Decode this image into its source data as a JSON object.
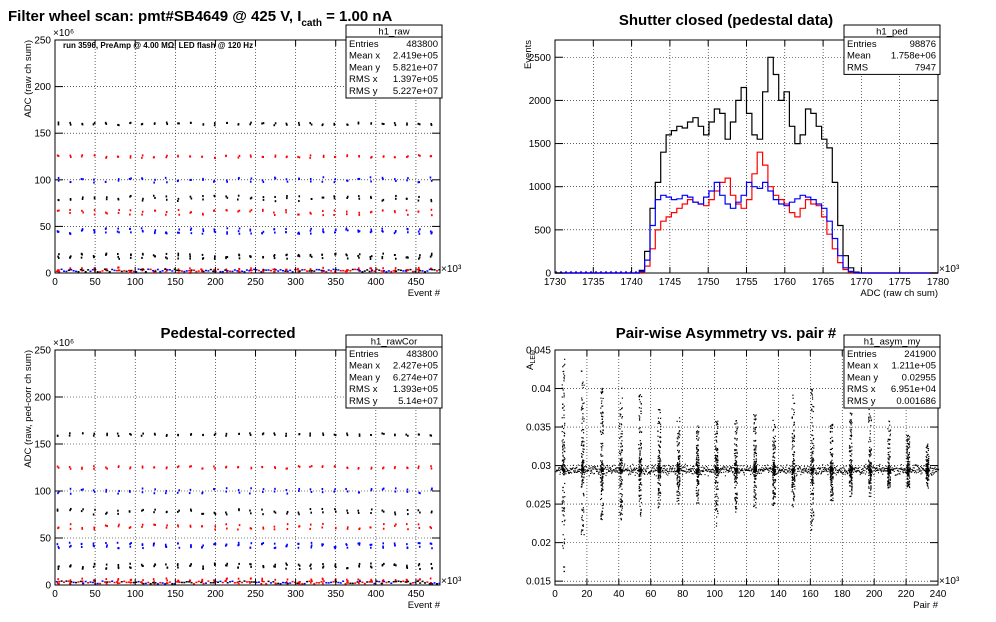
{
  "page_title": {
    "prefix": "Filter wheel scan: pmt#SB4649 @   425 V, I",
    "subscript": "cath",
    "suffix": " = 1.00 nA"
  },
  "chart_data": [
    {
      "id": "raw",
      "type": "scatter",
      "title": "",
      "annotation": "run 3596, PreAmp @ 4.00 MΩ, LED flash @  120 Hz",
      "xlabel": "Event #",
      "ylabel": "ADC (raw ch sum)",
      "x_exponent": "×10³",
      "y_exponent": "×10⁶",
      "xlim": [
        0,
        480
      ],
      "ylim": [
        0,
        250
      ],
      "xticks": [
        0,
        50,
        100,
        150,
        200,
        250,
        300,
        350,
        400,
        450
      ],
      "yticks": [
        0,
        50,
        100,
        150,
        200,
        250
      ],
      "grid": true,
      "levels": [
        160,
        125,
        100,
        80,
        65,
        45,
        18,
        3
      ],
      "period": 30,
      "series_colors": [
        "#000000",
        "#ff0000",
        "#0000ff"
      ],
      "stats": {
        "name": "h1_raw",
        "rows": [
          [
            "Entries",
            "483800"
          ],
          [
            "Mean x",
            "2.419e+05"
          ],
          [
            "Mean y",
            "5.821e+07"
          ],
          [
            "RMS x",
            "1.397e+05"
          ],
          [
            "RMS y",
            "5.227e+07"
          ]
        ]
      }
    },
    {
      "id": "ped",
      "type": "line",
      "title": "Shutter closed (pedestal data)",
      "xlabel": "ADC (raw ch sum)",
      "ylabel": "Events",
      "x_exponent": "×10³",
      "xlim": [
        1730,
        1780
      ],
      "ylim": [
        0,
        2700
      ],
      "xticks": [
        1730,
        1735,
        1740,
        1745,
        1750,
        1755,
        1760,
        1765,
        1770,
        1775,
        1780
      ],
      "yticks": [
        0,
        500,
        1000,
        1500,
        2000,
        2500
      ],
      "grid": true,
      "bin_start": 1741,
      "bin_width": 0.7,
      "series": [
        {
          "color": "#000000",
          "values": [
            30,
            250,
            750,
            1050,
            1400,
            1600,
            1650,
            1700,
            1680,
            1750,
            1800,
            1700,
            1600,
            1750,
            1900,
            1850,
            1550,
            1750,
            2000,
            2150,
            1850,
            1600,
            1550,
            2100,
            2500,
            2300,
            2000,
            2100,
            1700,
            1500,
            1600,
            1900,
            1850,
            1700,
            1550,
            1450,
            1050,
            550,
            200,
            60,
            10
          ]
        },
        {
          "color": "#ff0000",
          "values": [
            10,
            80,
            280,
            500,
            600,
            650,
            700,
            750,
            800,
            850,
            820,
            800,
            780,
            850,
            950,
            1050,
            1100,
            900,
            800,
            750,
            850,
            1150,
            1400,
            1250,
            1000,
            900,
            850,
            800,
            700,
            650,
            750,
            850,
            800,
            780,
            650,
            450,
            280,
            120,
            40,
            10,
            0
          ]
        },
        {
          "color": "#0000ff",
          "values": [
            20,
            150,
            550,
            850,
            900,
            880,
            850,
            860,
            900,
            880,
            820,
            800,
            880,
            950,
            1050,
            900,
            800,
            750,
            820,
            900,
            1050,
            1000,
            980,
            1050,
            950,
            850,
            800,
            780,
            820,
            860,
            900,
            880,
            850,
            800,
            750,
            600,
            400,
            200,
            60,
            20,
            0
          ]
        }
      ],
      "stats": {
        "name": "h1_ped",
        "rows": [
          [
            "Entries",
            "98876"
          ],
          [
            "Mean",
            "1.758e+06"
          ],
          [
            "RMS",
            "7947"
          ]
        ]
      }
    },
    {
      "id": "rawCor",
      "type": "scatter",
      "title": "Pedestal-corrected",
      "xlabel": "Event #",
      "ylabel": "ADC (raw, ped-corr ch sum)",
      "x_exponent": "×10³",
      "y_exponent": "×10⁶",
      "xlim": [
        0,
        480
      ],
      "ylim": [
        0,
        250
      ],
      "xticks": [
        0,
        50,
        100,
        150,
        200,
        250,
        300,
        350,
        400,
        450
      ],
      "yticks": [
        0,
        50,
        100,
        150,
        200,
        250
      ],
      "grid": true,
      "levels": [
        160,
        125,
        100,
        78,
        62,
        42,
        20,
        4
      ],
      "period": 30,
      "series_colors": [
        "#000000",
        "#ff0000",
        "#0000ff"
      ],
      "stats": {
        "name": "h1_rawCor",
        "rows": [
          [
            "Entries",
            "483800"
          ],
          [
            "Mean x",
            "2.427e+05"
          ],
          [
            "Mean y",
            "6.274e+07"
          ],
          [
            "RMS x",
            "1.393e+05"
          ],
          [
            "RMS y",
            "5.14e+07"
          ]
        ]
      }
    },
    {
      "id": "asym",
      "type": "scatter",
      "title": "Pair-wise Asymmetry vs. pair #",
      "xlabel": "Pair #",
      "ylabel": "A_LED",
      "x_exponent": "×10³",
      "xlim": [
        0,
        240
      ],
      "ylim": [
        0.0145,
        0.045
      ],
      "xticks": [
        0,
        20,
        40,
        60,
        80,
        100,
        120,
        140,
        160,
        180,
        200,
        220,
        240
      ],
      "yticks": [
        0.015,
        0.02,
        0.025,
        0.03,
        0.035,
        0.04,
        0.045
      ],
      "grid": true,
      "band_center": 0.0295,
      "band_halfwidth": 0.0009,
      "spike_x": [
        5,
        17,
        29,
        41,
        53,
        65,
        77,
        89,
        101,
        113,
        125,
        137,
        149,
        161,
        173,
        185,
        197,
        209,
        221,
        233
      ],
      "spike_top": [
        0.0455,
        0.043,
        0.041,
        0.0405,
        0.0395,
        0.0375,
        0.0365,
        0.0355,
        0.036,
        0.036,
        0.037,
        0.036,
        0.0395,
        0.04,
        0.0355,
        0.037,
        0.0375,
        0.036,
        0.034,
        0.033
      ],
      "spike_bottom": [
        0.016,
        0.0205,
        0.023,
        0.023,
        0.0235,
        0.0245,
        0.025,
        0.025,
        0.0215,
        0.024,
        0.0245,
        0.0245,
        0.0245,
        0.0215,
        0.0255,
        0.026,
        0.026,
        0.027,
        0.027,
        0.027
      ],
      "stats": {
        "name": "h1_asym_my",
        "rows": [
          [
            "Entries",
            "241900"
          ],
          [
            "Mean x",
            "1.211e+05"
          ],
          [
            "Mean y",
            "0.02955"
          ],
          [
            "RMS x",
            "6.951e+04"
          ],
          [
            "RMS y",
            "0.001686"
          ]
        ]
      }
    }
  ]
}
